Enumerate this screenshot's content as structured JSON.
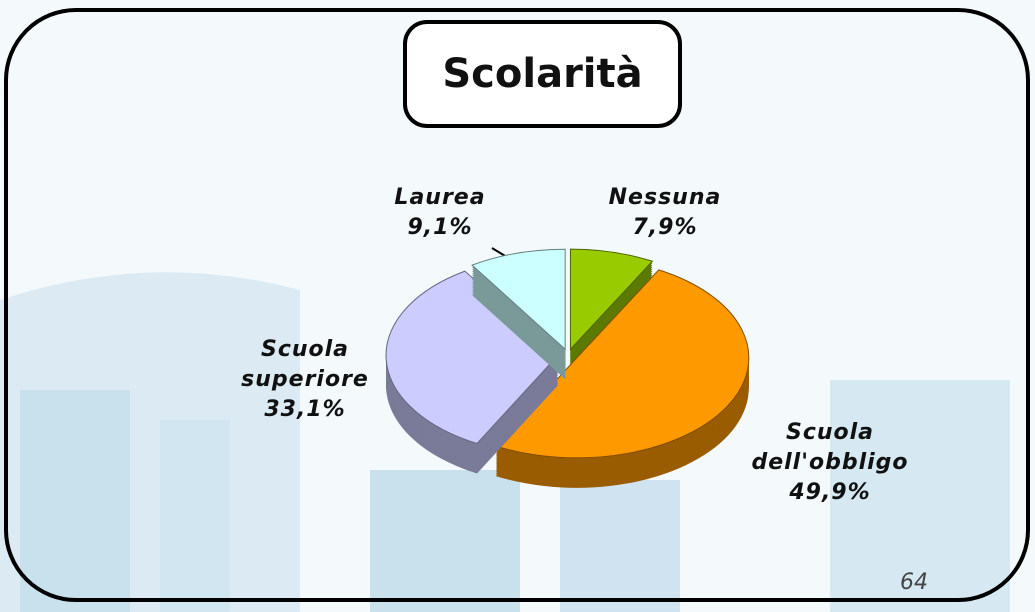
{
  "chart_data": {
    "type": "pie",
    "title": "Scolarità",
    "categories": [
      "Nessuna",
      "Scuola dell'obbligo",
      "Scuola superiore",
      "Laurea"
    ],
    "values": [
      7.9,
      49.9,
      33.1,
      9.1
    ],
    "value_labels": [
      "7,9%",
      "49,9%",
      "33,1%",
      "9,1%"
    ],
    "colors": [
      "#99cc00",
      "#ff9900",
      "#ccccff",
      "#ccffff"
    ]
  },
  "page_number": "64"
}
